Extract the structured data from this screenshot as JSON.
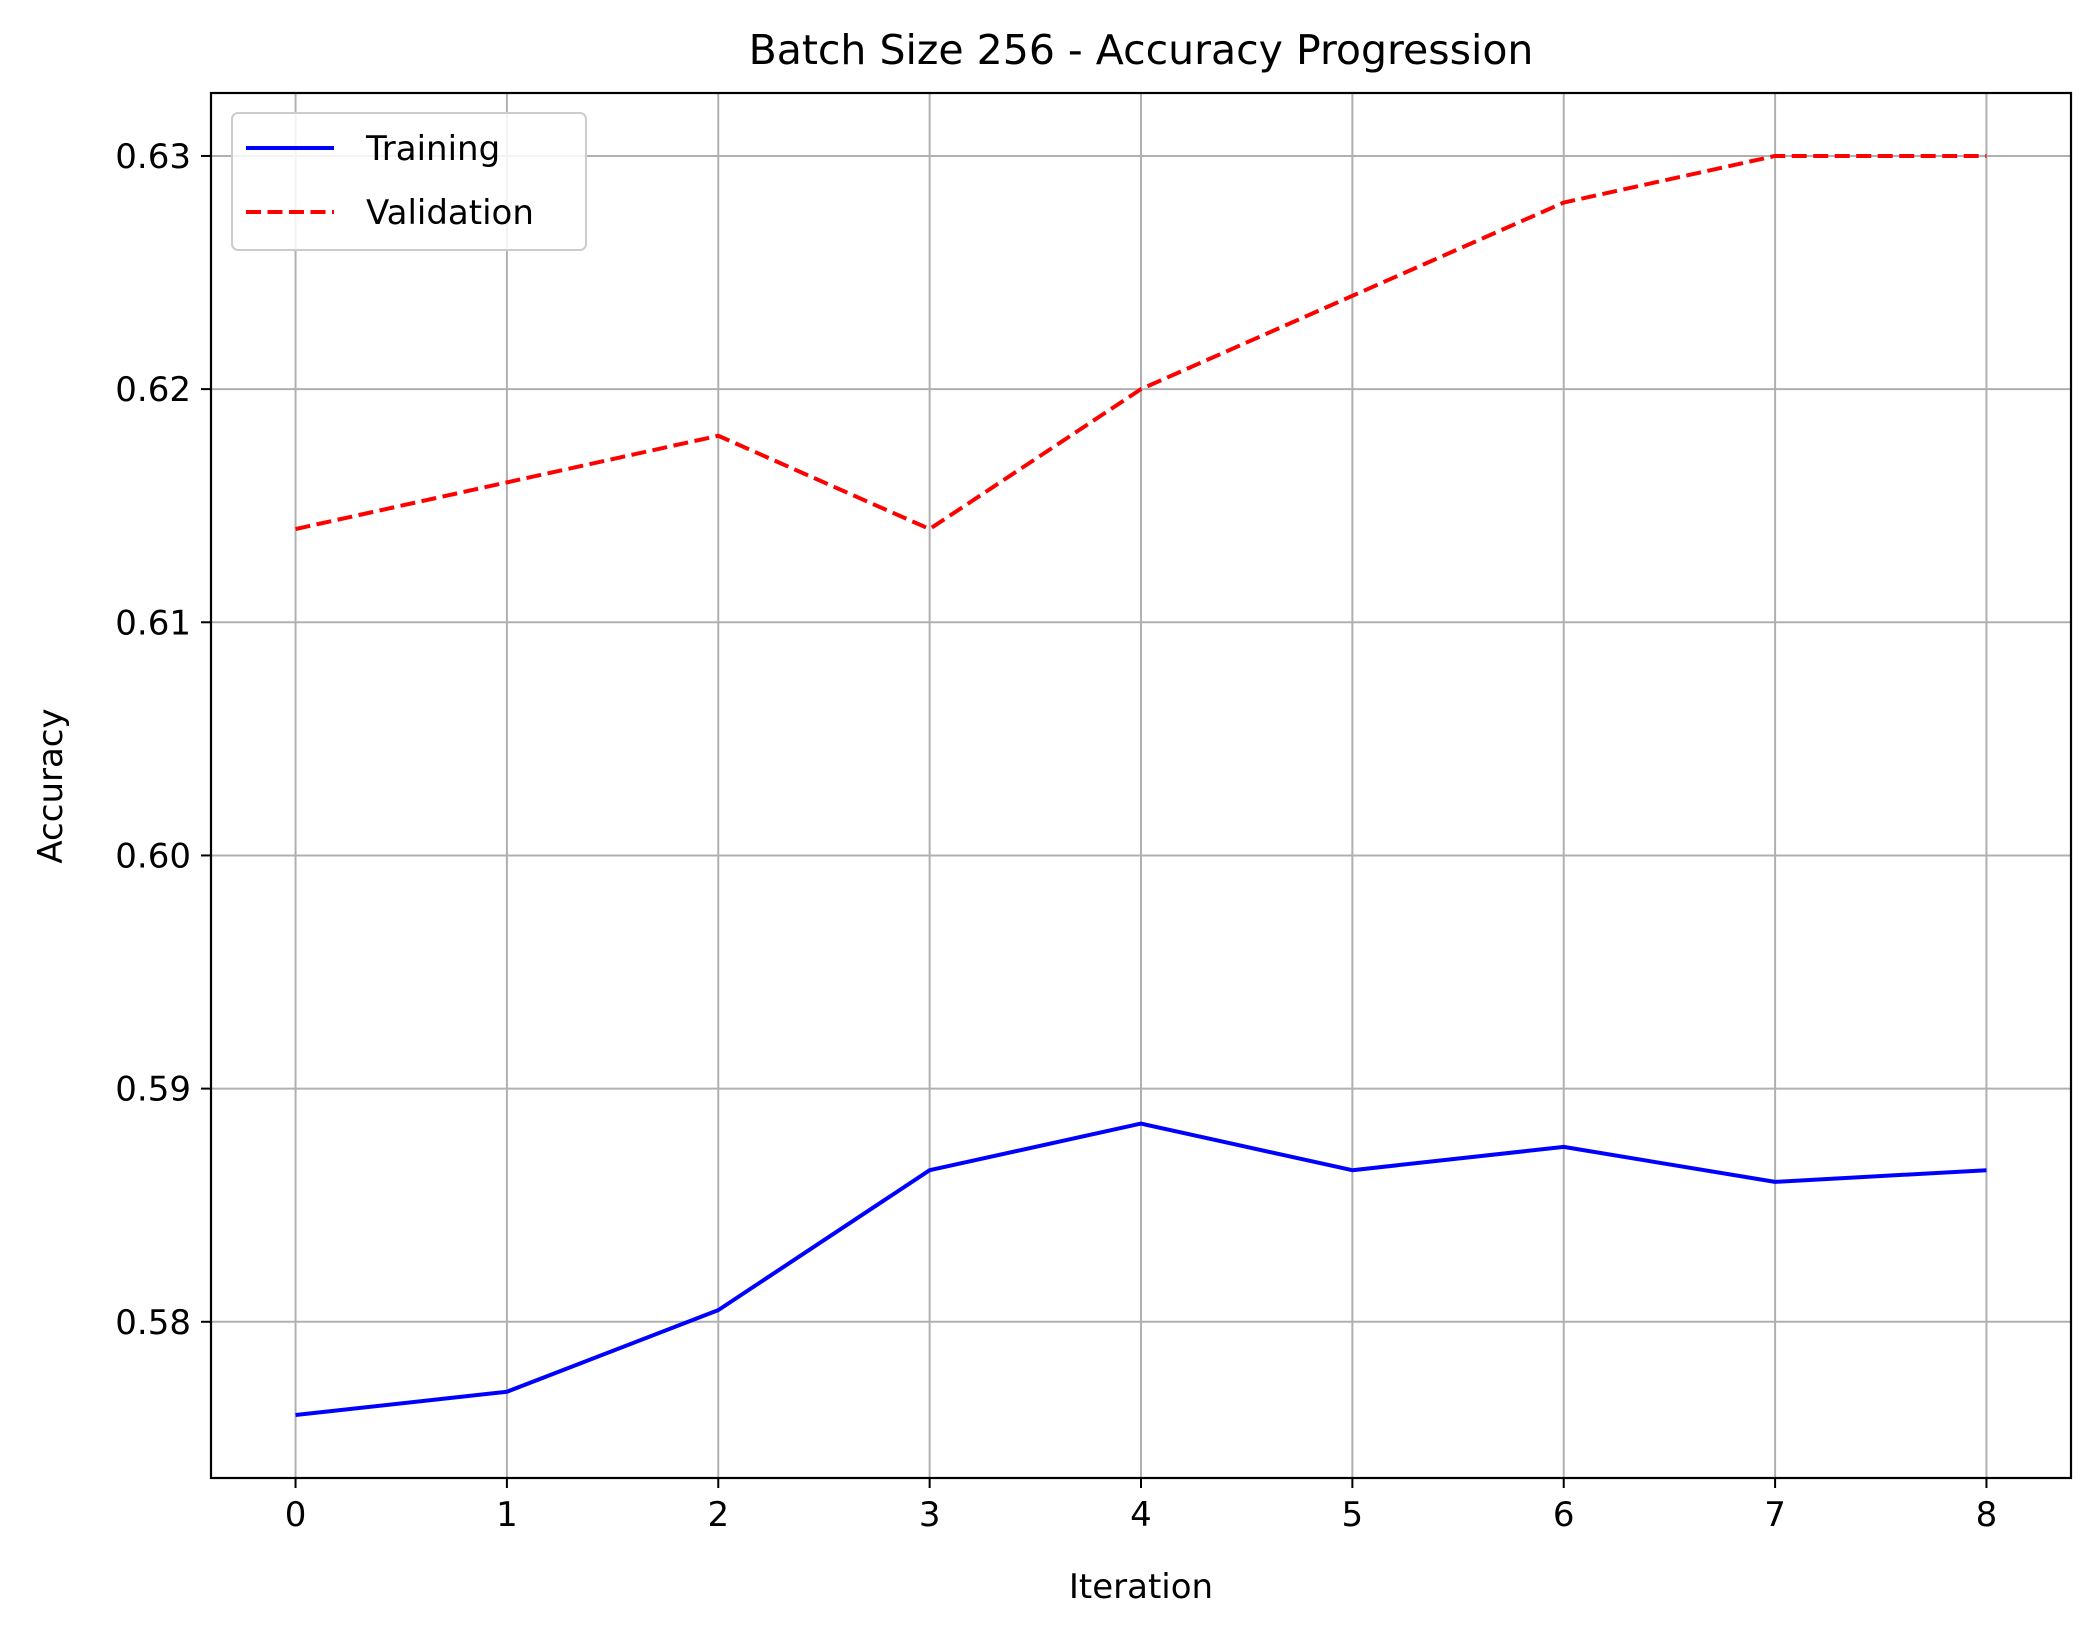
{
  "chart_data": {
    "type": "line",
    "title": "Batch Size 256 - Accuracy Progression",
    "xlabel": "Iteration",
    "ylabel": "Accuracy",
    "x": [
      0,
      1,
      2,
      3,
      4,
      5,
      6,
      7,
      8
    ],
    "xlim": [
      -0.4,
      8.4
    ],
    "ylim": [
      0.5733,
      0.6327
    ],
    "xticks": [
      0,
      1,
      2,
      3,
      4,
      5,
      6,
      7,
      8
    ],
    "yticks": [
      0.58,
      0.59,
      0.6,
      0.61,
      0.62,
      0.63
    ],
    "ytick_labels": [
      "0.58",
      "0.59",
      "0.60",
      "0.61",
      "0.62",
      "0.63"
    ],
    "grid": true,
    "legend_position": "top-left",
    "series": [
      {
        "name": "Training",
        "color": "#0000ff",
        "style": "solid",
        "values": [
          0.576,
          0.577,
          0.5805,
          0.5865,
          0.5885,
          0.5865,
          0.5875,
          0.586,
          0.5865
        ]
      },
      {
        "name": "Validation",
        "color": "#ff0000",
        "style": "dashed",
        "values": [
          0.614,
          0.616,
          0.618,
          0.614,
          0.62,
          0.624,
          0.628,
          0.63,
          0.63
        ]
      }
    ]
  }
}
